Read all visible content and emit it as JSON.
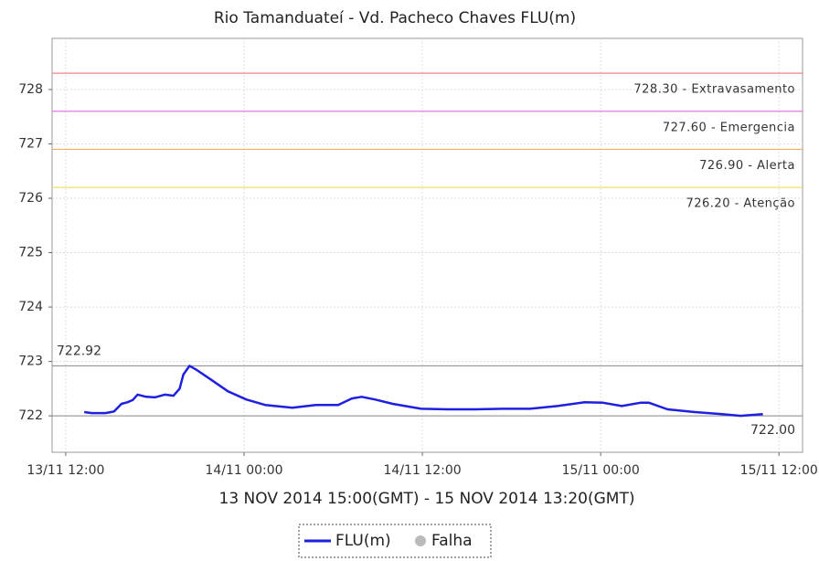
{
  "chart_data": {
    "type": "line",
    "title": "Rio Tamanduateí - Vd. Pacheco Chaves FLU(m)",
    "x_label": "13 NOV 2014 15:00(GMT) - 15 NOV 2014 13:20(GMT)",
    "x": [
      "13/11 13:15",
      "13/11 13:45",
      "13/11 14:40",
      "13/11 15:15",
      "13/11 15:45",
      "13/11 16:10",
      "13/11 16:30",
      "13/11 16:50",
      "13/11 17:25",
      "13/11 18:00",
      "13/11 18:40",
      "13/11 19:15",
      "13/11 19:40",
      "13/11 19:55",
      "13/11 20:20",
      "13/11 20:50",
      "13/11 21:45",
      "13/11 22:55",
      "14/11 00:10",
      "14/11 01:25",
      "14/11 03:15",
      "14/11 04:50",
      "14/11 06:20",
      "14/11 07:15",
      "14/11 07:55",
      "14/11 08:50",
      "14/11 10:00",
      "14/11 11:55",
      "14/11 13:45",
      "14/11 15:35",
      "14/11 17:25",
      "14/11 19:15",
      "14/11 21:05",
      "14/11 22:55",
      "15/11 00:10",
      "15/11 01:25",
      "15/11 02:40",
      "15/11 03:15",
      "15/11 04:30",
      "15/11 06:20",
      "15/11 08:10",
      "15/11 09:25",
      "15/11 10:55"
    ],
    "series": [
      {
        "name": "FLU(m)",
        "color": "#1f1fe0",
        "values": [
          722.07,
          722.05,
          722.05,
          722.08,
          722.22,
          722.25,
          722.29,
          722.39,
          722.35,
          722.34,
          722.39,
          722.37,
          722.5,
          722.76,
          722.92,
          722.84,
          722.67,
          722.45,
          722.3,
          722.2,
          722.15,
          722.2,
          722.2,
          722.32,
          722.35,
          722.3,
          722.22,
          722.13,
          722.12,
          722.12,
          722.13,
          722.13,
          722.18,
          722.25,
          722.24,
          722.18,
          722.24,
          722.24,
          722.12,
          722.07,
          722.03,
          722.0,
          722.03
        ]
      }
    ],
    "failure_legend": {
      "name": "Falha",
      "color": "#bbbbbb"
    },
    "xlim": [
      "13/11 11:05",
      "15/11 13:35"
    ],
    "xticks": [
      "13/11 12:00",
      "14/11 00:00",
      "14/11 12:00",
      "15/11 00:00",
      "15/11 12:00"
    ],
    "ylim": [
      721.33,
      728.94
    ],
    "yticks": [
      722,
      723,
      724,
      725,
      726,
      727,
      728
    ],
    "grid": true,
    "thresholds": [
      {
        "value": 728.3,
        "label": "728.30 - Extravasamento",
        "color": "#f08080"
      },
      {
        "value": 727.6,
        "label": "727.60 - Emergencia",
        "color": "#e07ae0"
      },
      {
        "value": 726.9,
        "label": "726.90 - Alerta",
        "color": "#f0b060"
      },
      {
        "value": 726.2,
        "label": "726.20 - Atenção",
        "color": "#f0e060"
      }
    ],
    "max_line": {
      "value": 722.92,
      "label": "722.92"
    },
    "min_line": {
      "value": 722.0,
      "label": "722.00"
    }
  }
}
